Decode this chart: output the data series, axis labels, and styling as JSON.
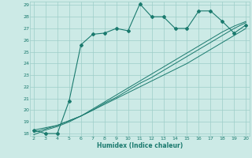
{
  "xlabel": "Humidex (Indice chaleur)",
  "x_data": [
    2,
    3,
    4,
    5,
    6,
    7,
    8,
    9,
    10,
    11,
    12,
    13,
    14,
    15,
    16,
    17,
    18,
    19,
    20
  ],
  "y_main": [
    18.3,
    18.0,
    18.0,
    20.8,
    25.6,
    26.5,
    26.6,
    27.0,
    26.8,
    29.1,
    28.0,
    28.0,
    27.0,
    27.0,
    28.5,
    28.5,
    27.6,
    26.6,
    27.3
  ],
  "y_line1": [
    18.3,
    18.5,
    18.7,
    19.1,
    19.5,
    20.0,
    20.5,
    21.0,
    21.5,
    22.0,
    22.5,
    23.0,
    23.5,
    24.0,
    24.6,
    25.2,
    25.8,
    26.4,
    27.0
  ],
  "y_line2": [
    18.1,
    18.4,
    18.7,
    19.1,
    19.5,
    20.0,
    20.6,
    21.1,
    21.7,
    22.3,
    22.8,
    23.4,
    24.0,
    24.6,
    25.2,
    25.8,
    26.4,
    27.0,
    27.5
  ],
  "y_line3": [
    17.9,
    18.3,
    18.6,
    19.0,
    19.5,
    20.1,
    20.7,
    21.3,
    21.9,
    22.5,
    23.1,
    23.7,
    24.3,
    24.9,
    25.5,
    26.1,
    26.7,
    27.2,
    27.6
  ],
  "line_color": "#1a7a6e",
  "bg_color": "#cceae6",
  "grid_color": "#9ecec9",
  "ylim": [
    18,
    29
  ],
  "xlim": [
    2,
    20
  ],
  "yticks": [
    18,
    19,
    20,
    21,
    22,
    23,
    24,
    25,
    26,
    27,
    28,
    29
  ],
  "xticks": [
    2,
    3,
    4,
    5,
    6,
    7,
    8,
    9,
    10,
    11,
    12,
    13,
    14,
    15,
    16,
    17,
    18,
    19,
    20
  ]
}
